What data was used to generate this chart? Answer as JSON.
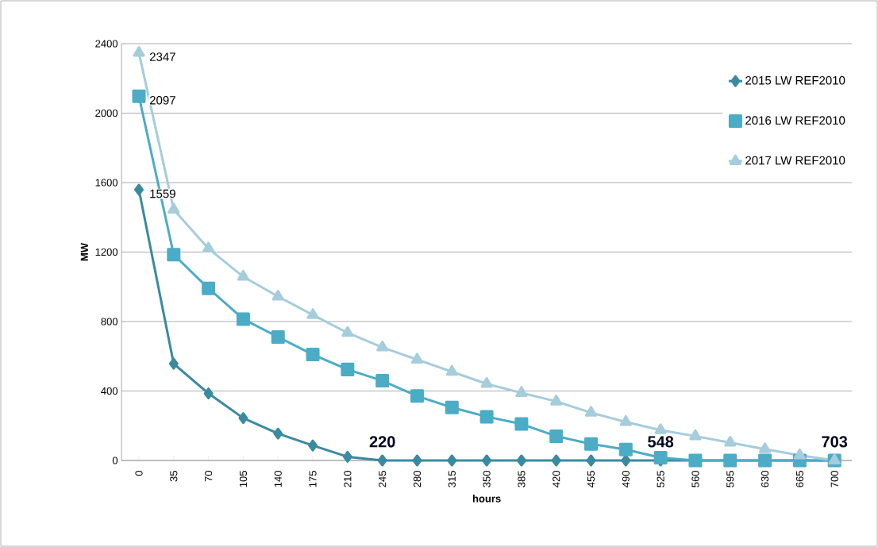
{
  "chart_data": {
    "type": "line",
    "xlabel": "hours",
    "ylabel": "MW",
    "categories": [
      "0",
      "35",
      "70",
      "105",
      "140",
      "175",
      "210",
      "245",
      "280",
      "315",
      "350",
      "385",
      "420",
      "455",
      "490",
      "525",
      "560",
      "595",
      "630",
      "665",
      "700"
    ],
    "ylim": [
      0,
      2400
    ],
    "yticks": [
      0,
      400,
      800,
      1200,
      1600,
      2000,
      2400
    ],
    "grid": "y",
    "legend": "top right",
    "series": [
      {
        "name": "2015  LW  REF2010",
        "color": "#3a8aa0",
        "marker": "diamond",
        "values": [
          1559,
          557,
          386,
          244,
          155,
          86,
          21,
          0,
          0,
          0,
          0,
          0,
          0,
          0,
          0,
          0,
          0,
          0,
          0,
          0,
          0
        ],
        "value_labels": [
          "1559",
          null,
          null,
          null,
          null,
          null,
          null,
          null,
          null,
          null,
          null,
          null,
          null,
          null,
          null,
          null,
          null,
          null,
          null,
          null,
          null
        ]
      },
      {
        "name": "2016  LW  REF2010",
        "color": "#4bacc6",
        "marker": "square",
        "values": [
          2097,
          1185,
          991,
          814,
          711,
          610,
          524,
          459,
          371,
          305,
          252,
          210,
          140,
          95,
          63,
          16,
          0,
          0,
          0,
          0,
          0
        ],
        "value_labels": [
          "2097",
          null,
          null,
          null,
          null,
          null,
          null,
          null,
          null,
          null,
          null,
          null,
          null,
          null,
          null,
          null,
          null,
          null,
          null,
          null,
          null
        ]
      },
      {
        "name": "2017  LW  REF2010",
        "color": "#a5cddb",
        "marker": "triangle",
        "values": [
          2347,
          1445,
          1220,
          1058,
          944,
          838,
          735,
          651,
          581,
          511,
          441,
          389,
          340,
          275,
          222,
          175,
          140,
          103,
          65,
          30,
          0
        ],
        "value_labels": [
          "2347",
          null,
          null,
          null,
          null,
          null,
          null,
          null,
          null,
          null,
          null,
          null,
          null,
          null,
          null,
          null,
          null,
          null,
          null,
          null,
          null
        ]
      }
    ],
    "annotations": [
      {
        "text": "220",
        "x": "245",
        "y": 0
      },
      {
        "text": "548",
        "x": "525",
        "y": 0
      },
      {
        "text": "703",
        "x": "700",
        "y": 0
      }
    ]
  }
}
